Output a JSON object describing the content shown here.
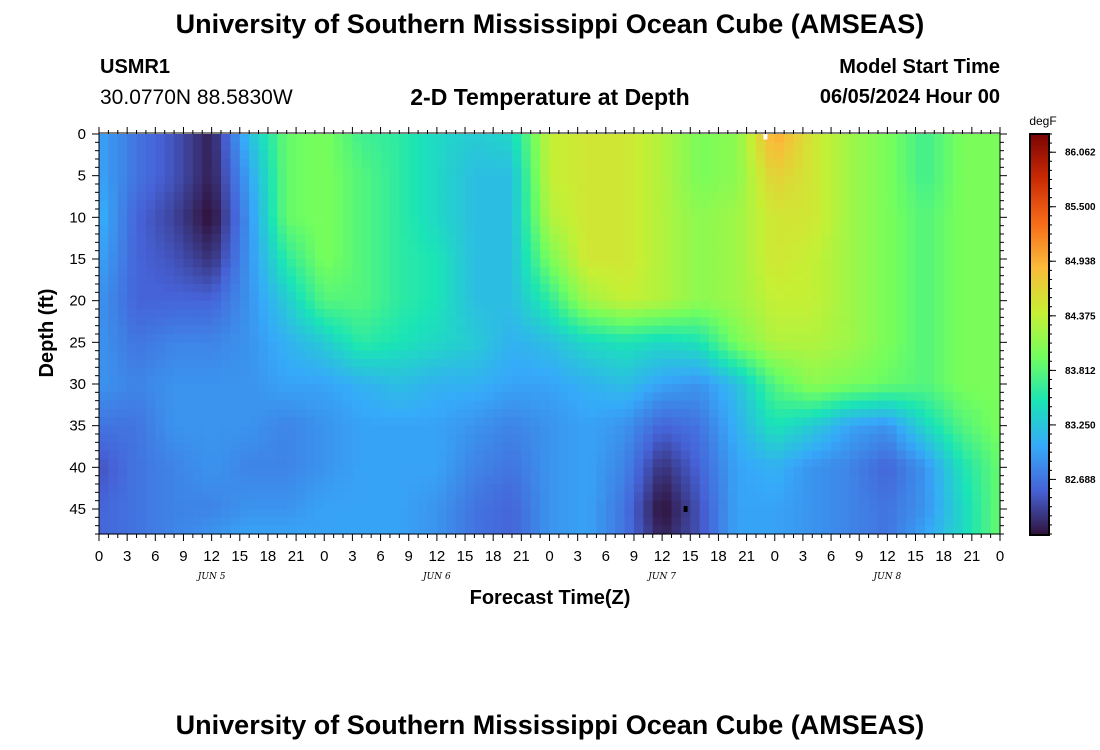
{
  "header": {
    "title": "University of Southern Mississippi Ocean Cube (AMSEAS)",
    "station_id": "USMR1",
    "station_coords": "30.0770N  88.5830W",
    "plot_title": "2-D Temperature at Depth",
    "model_start_label": "Model Start Time",
    "model_start_value": "06/05/2024 Hour 00",
    "footer_title": "University of Southern Mississippi Ocean Cube (AMSEAS)"
  },
  "chart_data": {
    "type": "heatmap",
    "title": "2-D Temperature at Depth",
    "xlabel": "Forecast Time(Z)",
    "ylabel": "Depth (ft)",
    "colorbar_unit": "degF",
    "x_tick_labels": [
      "0",
      "3",
      "6",
      "9",
      "12",
      "15",
      "18",
      "21",
      "0",
      "3",
      "6",
      "9",
      "12",
      "15",
      "18",
      "21",
      "0",
      "3",
      "6",
      "9",
      "12",
      "15",
      "18",
      "21",
      "0",
      "3",
      "6",
      "9",
      "12",
      "15",
      "18",
      "21",
      "0"
    ],
    "x_tick_hours": [
      0,
      3,
      6,
      9,
      12,
      15,
      18,
      21,
      24,
      27,
      30,
      33,
      36,
      39,
      42,
      45,
      48,
      51,
      54,
      57,
      60,
      63,
      66,
      69,
      72,
      75,
      78,
      81,
      84,
      87,
      90,
      93,
      96
    ],
    "x_range_hours": [
      0,
      96
    ],
    "day_labels": [
      {
        "label": "JUN 5",
        "hour": 12
      },
      {
        "label": "JUN 6",
        "hour": 36
      },
      {
        "label": "JUN 7",
        "hour": 60
      },
      {
        "label": "JUN 8",
        "hour": 84
      }
    ],
    "y_tick_labels": [
      "0",
      "5",
      "10",
      "15",
      "20",
      "25",
      "30",
      "35",
      "40",
      "45"
    ],
    "y_ticks": [
      0,
      5,
      10,
      15,
      20,
      25,
      30,
      35,
      40,
      45
    ],
    "ylim": [
      0,
      48
    ],
    "y_inverted": true,
    "colorbar_ticks": [
      86.062,
      85.5,
      84.938,
      84.375,
      83.812,
      83.25,
      82.688
    ],
    "colorbar_tick_labels": [
      "86.062",
      "85.500",
      "84.938",
      "84.375",
      "83.812",
      "83.250",
      "82.688"
    ],
    "colorbar_range": [
      82.125,
      86.25
    ],
    "colormap": [
      "#30123b",
      "#4662d7",
      "#36aaf9",
      "#1ae4b6",
      "#72fe5e",
      "#c7ef34",
      "#fabb39",
      "#f66b19",
      "#ca2a04",
      "#7a0403"
    ],
    "markers": [
      {
        "hour": 71,
        "depth": 0.3,
        "color": "#ffffff"
      },
      {
        "hour": 62.5,
        "depth": 45,
        "color": "#000000"
      }
    ],
    "temperature_grid": {
      "x_hours": [
        0,
        4,
        8,
        12,
        16,
        20,
        24,
        28,
        32,
        36,
        40,
        44,
        48,
        52,
        56,
        60,
        64,
        68,
        72,
        76,
        80,
        84,
        88,
        92,
        96
      ],
      "depths": [
        0,
        5,
        10,
        15,
        20,
        25,
        30,
        35,
        40,
        45,
        48
      ],
      "rows": [
        [
          83.0,
          82.7,
          82.5,
          82.2,
          83.2,
          83.9,
          84.0,
          83.7,
          83.6,
          83.4,
          83.3,
          83.4,
          84.4,
          84.5,
          84.5,
          84.3,
          84.0,
          84.1,
          85.0,
          84.5,
          84.2,
          84.0,
          83.7,
          84.0,
          84.0
        ],
        [
          83.0,
          82.7,
          82.5,
          82.2,
          83.0,
          83.9,
          84.0,
          83.8,
          83.6,
          83.4,
          83.2,
          83.2,
          84.4,
          84.5,
          84.5,
          84.3,
          84.0,
          84.1,
          84.7,
          84.5,
          84.2,
          84.0,
          83.7,
          84.0,
          84.0
        ],
        [
          83.1,
          82.6,
          82.4,
          82.1,
          82.9,
          83.9,
          84.0,
          83.8,
          83.6,
          83.4,
          83.2,
          83.2,
          84.3,
          84.5,
          84.5,
          84.3,
          84.1,
          84.2,
          84.5,
          84.5,
          84.2,
          84.0,
          83.8,
          84.0,
          84.0
        ],
        [
          83.0,
          82.6,
          82.5,
          82.3,
          82.9,
          83.6,
          84.0,
          83.8,
          83.6,
          83.5,
          83.2,
          83.2,
          84.0,
          84.5,
          84.5,
          84.3,
          84.1,
          84.2,
          84.5,
          84.4,
          84.2,
          84.0,
          83.8,
          84.0,
          84.0
        ],
        [
          82.9,
          82.6,
          82.6,
          82.6,
          82.9,
          83.3,
          83.8,
          83.8,
          83.6,
          83.5,
          83.2,
          83.2,
          83.6,
          84.2,
          84.4,
          84.3,
          84.1,
          84.2,
          84.4,
          84.4,
          84.2,
          84.0,
          83.8,
          84.0,
          84.0
        ],
        [
          82.9,
          82.7,
          82.8,
          82.8,
          82.9,
          83.1,
          83.3,
          83.6,
          83.5,
          83.4,
          83.3,
          83.1,
          83.2,
          83.4,
          83.5,
          83.4,
          83.5,
          84.0,
          84.3,
          84.3,
          84.2,
          84.0,
          83.8,
          84.0,
          84.0
        ],
        [
          82.9,
          82.8,
          82.9,
          82.9,
          82.9,
          83.0,
          83.0,
          83.1,
          83.2,
          83.1,
          83.1,
          83.0,
          83.0,
          83.1,
          83.2,
          83.0,
          82.9,
          83.2,
          83.8,
          84.1,
          84.0,
          83.9,
          83.8,
          84.0,
          84.0
        ],
        [
          82.7,
          82.7,
          82.9,
          82.9,
          82.9,
          82.8,
          82.9,
          83.0,
          83.0,
          83.0,
          82.9,
          82.8,
          82.9,
          83.0,
          82.9,
          82.6,
          82.7,
          83.1,
          83.5,
          83.3,
          83.0,
          82.9,
          83.4,
          83.8,
          84.0
        ],
        [
          82.5,
          82.7,
          82.8,
          82.9,
          82.8,
          82.8,
          82.9,
          83.0,
          83.0,
          83.0,
          82.8,
          82.7,
          82.9,
          83.0,
          82.8,
          82.3,
          82.6,
          83.0,
          83.1,
          82.9,
          82.8,
          82.6,
          82.9,
          83.5,
          83.9
        ],
        [
          82.6,
          82.7,
          82.8,
          82.8,
          82.9,
          82.9,
          83.0,
          83.0,
          83.0,
          82.9,
          82.7,
          82.6,
          82.9,
          83.0,
          82.7,
          82.1,
          82.5,
          83.0,
          83.0,
          82.9,
          82.8,
          82.7,
          82.9,
          83.4,
          83.9
        ],
        [
          82.6,
          82.7,
          82.8,
          82.9,
          83.0,
          83.0,
          83.0,
          83.0,
          83.0,
          82.9,
          82.7,
          82.6,
          82.9,
          83.0,
          82.7,
          82.2,
          82.5,
          83.0,
          83.0,
          82.9,
          82.8,
          82.7,
          83.0,
          83.4,
          83.9
        ]
      ]
    }
  }
}
